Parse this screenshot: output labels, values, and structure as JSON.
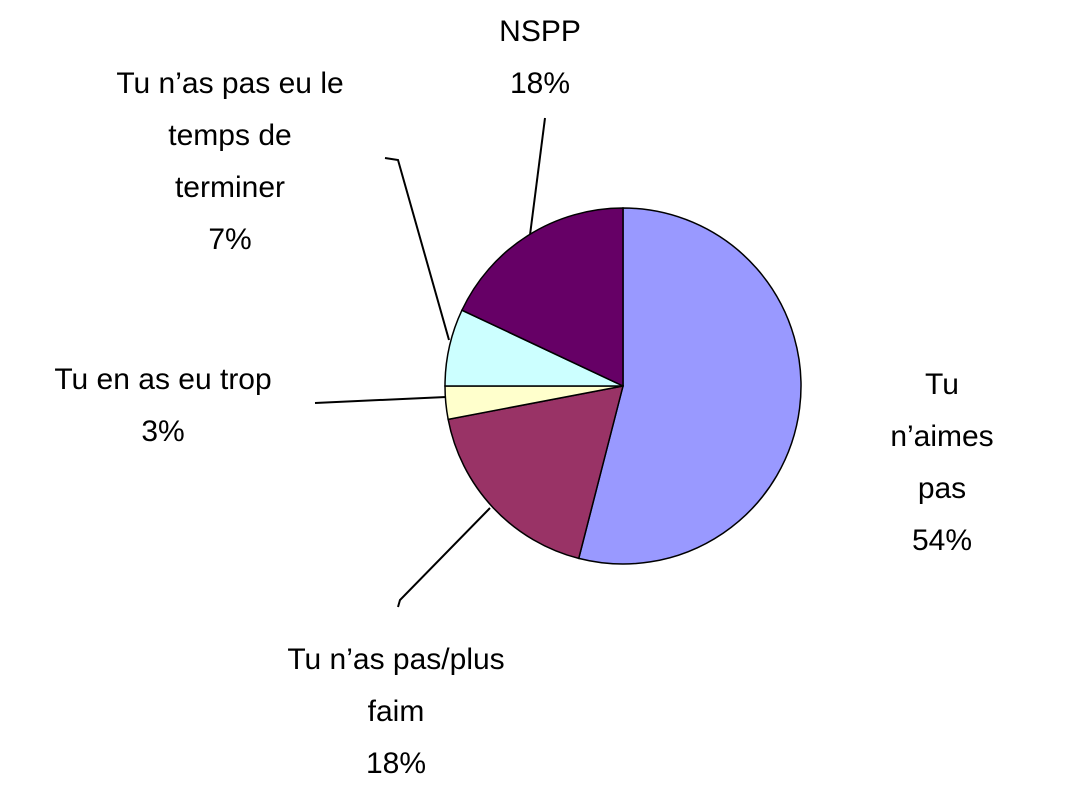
{
  "chart_data": {
    "type": "pie",
    "categories": [
      "Tu n’aimes pas",
      "Tu n’as pas/plus\nfaim",
      "Tu en as eu trop",
      "Tu n’as pas eu le\ntemps de\nterminer",
      "NSPP"
    ],
    "values": [
      54,
      18,
      3,
      7,
      18
    ],
    "value_labels": [
      "54%",
      "18%",
      "3%",
      "7%",
      "18%"
    ],
    "colors": [
      "#9999ff",
      "#993366",
      "#ffffcc",
      "#ccffff",
      "#660066"
    ]
  }
}
